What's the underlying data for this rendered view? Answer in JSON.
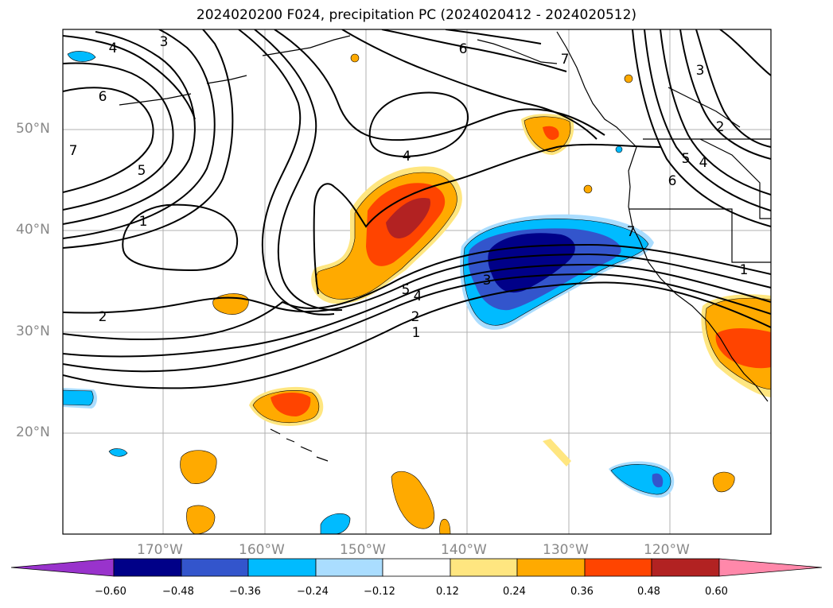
{
  "title": "2024020200 F024, precipitation PC (2024020412 - 2024020512)",
  "latitude_labels": [
    "50°N",
    "40°N",
    "30°N",
    "20°N"
  ],
  "longitude_labels": [
    "170°W",
    "160°W",
    "150°W",
    "140°W",
    "130°W",
    "120°W"
  ],
  "colorbar": {
    "ticks": [
      "−0.60",
      "−0.48",
      "−0.36",
      "−0.24",
      "−0.12",
      "0.12",
      "0.24",
      "0.36",
      "0.48",
      "0.60"
    ],
    "colors": [
      "#9933cc",
      "#000088",
      "#3355cc",
      "#00bbff",
      "#aaddff",
      "#ffffff",
      "#ffe680",
      "#ffaa00",
      "#ff4400",
      "#b22222",
      "#ff88aa"
    ]
  },
  "contour_labels": [
    "4",
    "3",
    "6",
    "6",
    "7",
    "5",
    "1",
    "2",
    "4",
    "5",
    "4",
    "2",
    "1",
    "3",
    "7",
    "3",
    "2",
    "5",
    "4",
    "6",
    "7",
    "1"
  ]
}
